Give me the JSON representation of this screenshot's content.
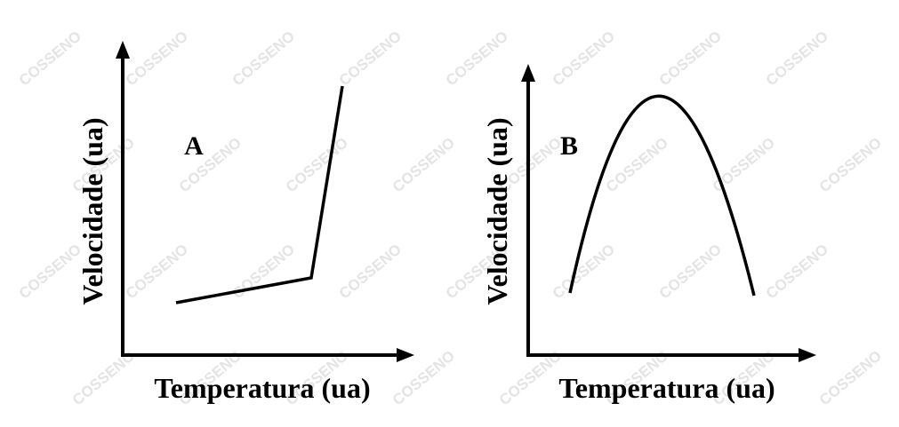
{
  "watermark": "COSSENO",
  "panels": [
    {
      "label": "A",
      "x_axis_label": "Temperatura (ua)",
      "y_axis_label": "Velocidade (ua)"
    },
    {
      "label": "B",
      "x_axis_label": "Temperatura (ua)",
      "y_axis_label": "Velocidade (ua)"
    }
  ]
}
